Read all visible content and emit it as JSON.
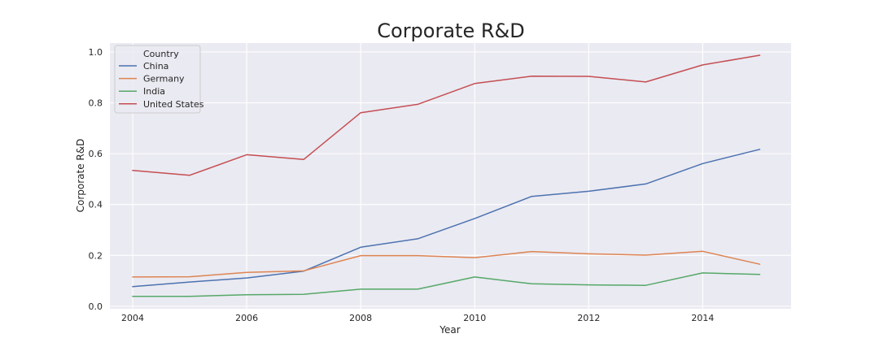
{
  "chart_data": {
    "type": "line",
    "title": "Corporate R&D",
    "xlabel": "Year",
    "ylabel": "Corporate R&D",
    "x": [
      2004,
      2005,
      2006,
      2007,
      2008,
      2009,
      2010,
      2011,
      2012,
      2013,
      2014,
      2015
    ],
    "xlim": [
      2003.6,
      2015.55
    ],
    "ylim": [
      -0.01,
      1.035
    ],
    "xticks": [
      2004,
      2006,
      2008,
      2010,
      2012,
      2014
    ],
    "xtick_labels": [
      "2004",
      "2006",
      "2008",
      "2010",
      "2012",
      "2014"
    ],
    "yticks": [
      0.0,
      0.2,
      0.4,
      0.6,
      0.8,
      1.0
    ],
    "ytick_labels": [
      "0.0",
      "0.2",
      "0.4",
      "0.6",
      "0.8",
      "1.0"
    ],
    "grid": true,
    "background": "#eaeaf2",
    "legend": {
      "title": "Country",
      "placement": "top-left"
    },
    "series": [
      {
        "name": "China",
        "color": "#4c72b0",
        "values": [
          0.077,
          0.095,
          0.111,
          0.138,
          0.232,
          0.265,
          0.345,
          0.432,
          0.452,
          0.481,
          0.561,
          0.617
        ]
      },
      {
        "name": "Germany",
        "color": "#dd8452",
        "values": [
          0.115,
          0.116,
          0.133,
          0.139,
          0.199,
          0.199,
          0.191,
          0.215,
          0.206,
          0.201,
          0.216,
          0.165
        ]
      },
      {
        "name": "India",
        "color": "#55a868",
        "values": [
          0.039,
          0.039,
          0.045,
          0.047,
          0.067,
          0.067,
          0.115,
          0.088,
          0.084,
          0.082,
          0.131,
          0.125
        ]
      },
      {
        "name": "United States",
        "color": "#c44e52",
        "values": [
          0.534,
          0.515,
          0.596,
          0.577,
          0.761,
          0.794,
          0.876,
          0.905,
          0.904,
          0.882,
          0.949,
          0.987
        ]
      }
    ]
  }
}
